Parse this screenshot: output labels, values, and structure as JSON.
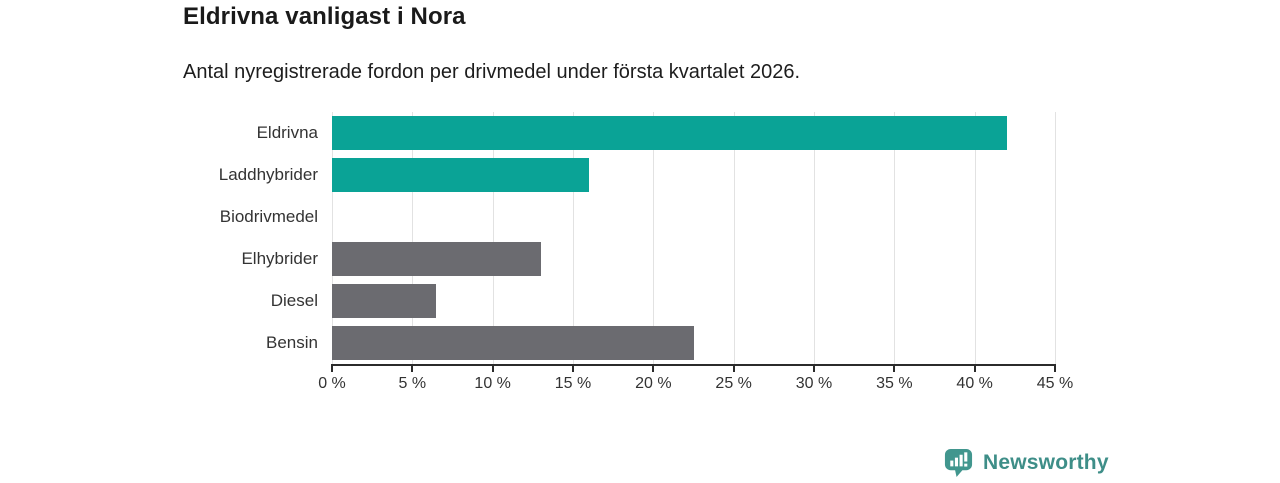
{
  "header": {
    "title": "Eldrivna vanligast i Nora",
    "subtitle": "Antal nyregistrerade fordon per drivmedel under första kvartalet 2026."
  },
  "chart_data": {
    "type": "bar",
    "orientation": "horizontal",
    "title": "Eldrivna vanligast i Nora",
    "subtitle": "Antal nyregistrerade fordon per drivmedel under första kvartalet 2026.",
    "categories": [
      "Eldrivna",
      "Laddhybrider",
      "Biodrivmedel",
      "Elhybrider",
      "Diesel",
      "Bensin"
    ],
    "values": [
      42,
      16,
      0,
      13,
      6.5,
      22.5
    ],
    "bar_colors": [
      "#0aa396",
      "#0aa396",
      "#6b6b70",
      "#6b6b70",
      "#6b6b70",
      "#6b6b70"
    ],
    "xlabel": "",
    "ylabel": "",
    "xlim": [
      0,
      45
    ],
    "x_ticks": [
      0,
      5,
      10,
      15,
      20,
      25,
      30,
      35,
      40,
      45
    ],
    "x_tick_labels": [
      "0 %",
      "5 %",
      "10 %",
      "15 %",
      "20 %",
      "25 %",
      "30 %",
      "35 %",
      "40 %",
      "45 %"
    ],
    "grid": true,
    "legend": false
  },
  "colors": {
    "teal_bar": "#0aa396",
    "gray_bar": "#6b6b70",
    "gridline": "#e2e2e2",
    "axis": "#2b2b2b",
    "text": "#333333",
    "brand_icon": "#41968e",
    "brand_text": "#3e8e88"
  },
  "branding": {
    "logo_text": "Newsworthy",
    "logo_icon": "newsworthy-bubble-barchart-icon"
  }
}
